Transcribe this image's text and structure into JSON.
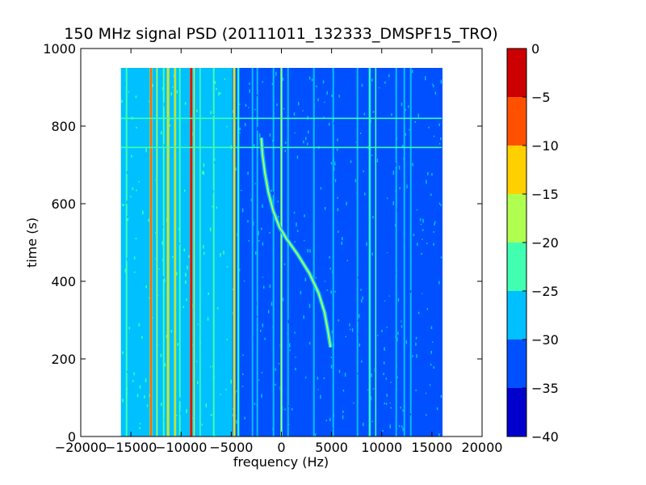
{
  "chart_data": {
    "type": "heatmap",
    "title": "150 MHz signal PSD (20111011_132333_DMSPF15_TRO)",
    "xlabel": "frequency (Hz)",
    "ylabel": "time (s)",
    "xlim": [
      -20000,
      20000
    ],
    "ylim": [
      0,
      1000
    ],
    "x_ticks": [
      -20000,
      -15000,
      -10000,
      -5000,
      0,
      5000,
      10000,
      15000,
      20000
    ],
    "y_ticks": [
      0,
      200,
      400,
      600,
      800,
      1000
    ],
    "data_extent": {
      "x": [
        -16000,
        16000
      ],
      "y": [
        0,
        950
      ]
    },
    "colorbar": {
      "range": [
        -40,
        0
      ],
      "levels": [
        -40,
        -35,
        -30,
        -25,
        -20,
        -15,
        -10,
        -5,
        0
      ],
      "ticks": [
        0,
        -5,
        -10,
        -15,
        -20,
        -25,
        -30,
        -35,
        -40
      ],
      "colors": [
        "#0000cd",
        "#0050ff",
        "#00c0ff",
        "#40ffb0",
        "#b0ff50",
        "#ffd000",
        "#ff5000",
        "#cc0000"
      ]
    },
    "features": {
      "background_low_freq_db": -27,
      "background_high_freq_db": -32,
      "doppler_curve": [
        {
          "t": 230,
          "f": 4900
        },
        {
          "t": 270,
          "f": 4650
        },
        {
          "t": 320,
          "f": 4300
        },
        {
          "t": 370,
          "f": 3700
        },
        {
          "t": 420,
          "f": 2800
        },
        {
          "t": 470,
          "f": 1600
        },
        {
          "t": 510,
          "f": 500
        },
        {
          "t": 540,
          "f": -200
        },
        {
          "t": 580,
          "f": -800
        },
        {
          "t": 630,
          "f": -1300
        },
        {
          "t": 680,
          "f": -1650
        },
        {
          "t": 730,
          "f": -1900
        },
        {
          "t": 770,
          "f": -2000
        }
      ],
      "strong_lines": [
        {
          "f": -13000,
          "db": -8
        },
        {
          "f": -12400,
          "db": -20
        },
        {
          "f": -11300,
          "db": -12
        },
        {
          "f": -10600,
          "db": -15
        },
        {
          "f": -9000,
          "db": -3
        },
        {
          "f": -8700,
          "db": -20
        },
        {
          "f": -8100,
          "db": -22
        },
        {
          "f": -4700,
          "db": -12
        },
        {
          "f": -4300,
          "db": -22
        },
        {
          "f": 0,
          "db": -20
        },
        {
          "f": 8800,
          "db": -22
        },
        {
          "f": 9400,
          "db": -25
        }
      ],
      "horizontal_lines": [
        {
          "t": 820,
          "db": -22
        },
        {
          "t": 745,
          "db": -22
        }
      ]
    }
  }
}
